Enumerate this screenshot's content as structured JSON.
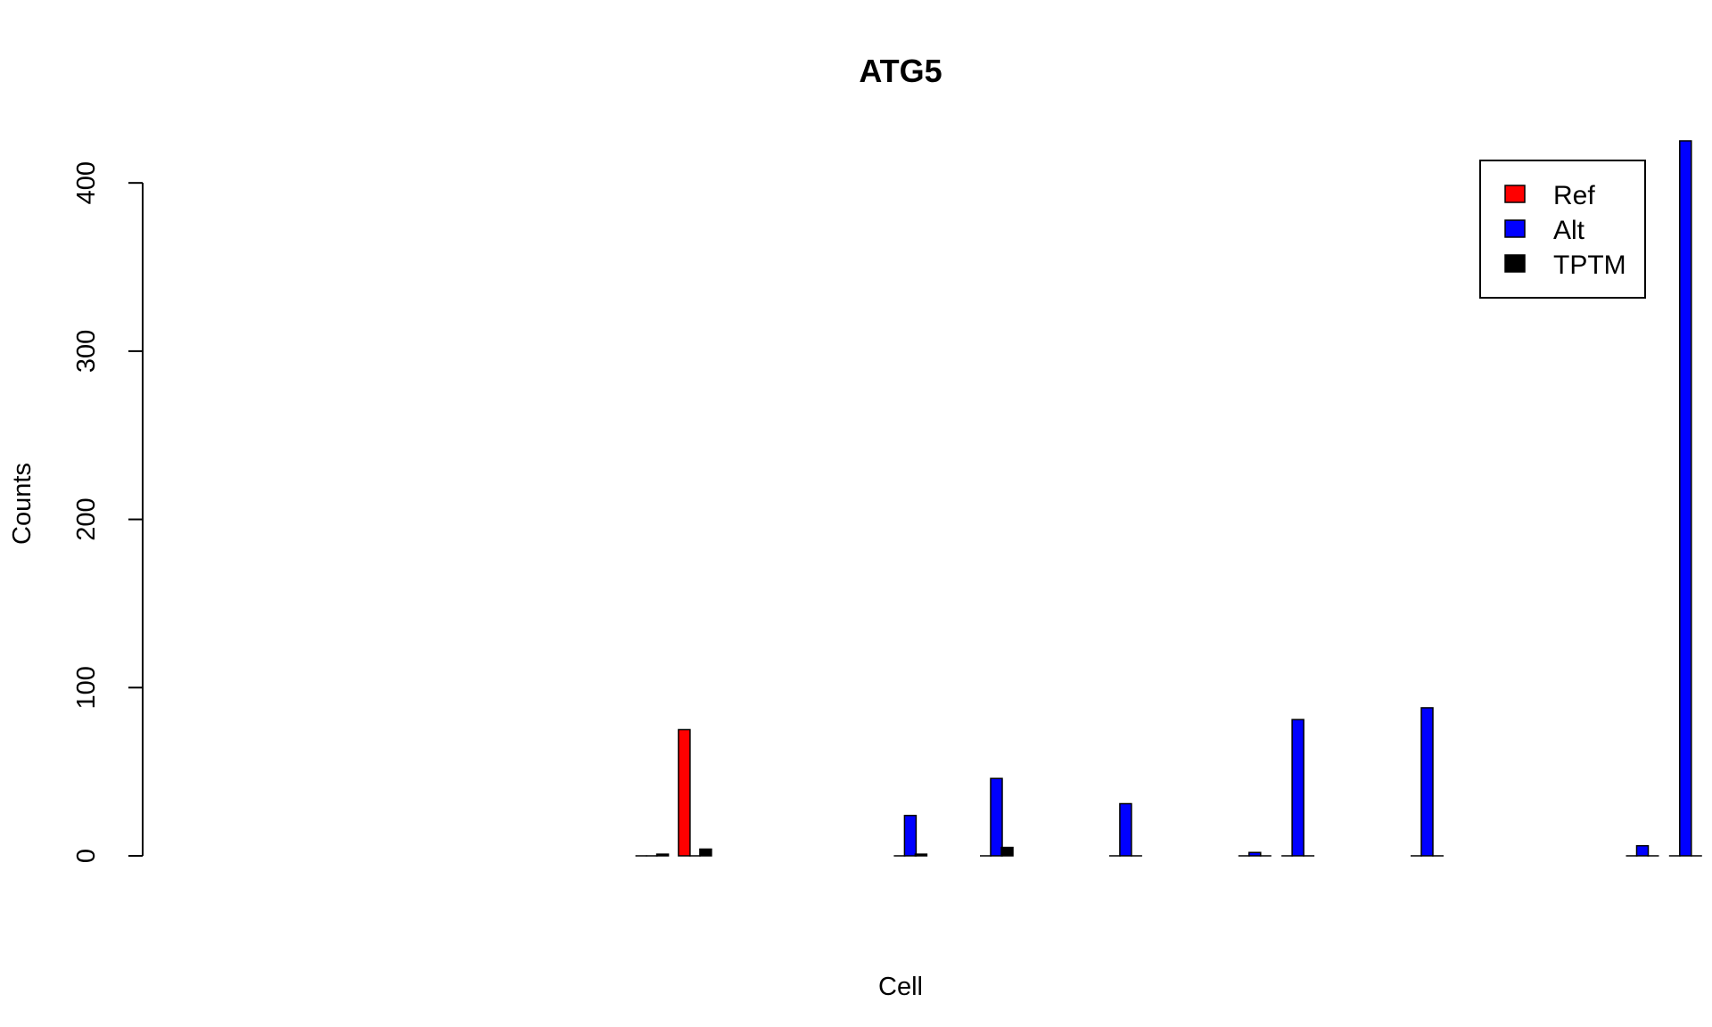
{
  "chart_data": {
    "type": "bar",
    "title": "ATG5",
    "xlabel": "Cell",
    "ylabel": "Counts",
    "ylim": [
      0,
      425
    ],
    "yticks": [
      0,
      100,
      200,
      300,
      400
    ],
    "grid": false,
    "legend_position": "top-right",
    "bar_mode": "grouped",
    "categories": [
      "",
      "",
      "",
      "",
      "",
      "",
      "",
      "",
      "",
      "",
      "",
      "",
      "",
      "",
      "",
      "",
      "",
      "",
      "",
      "",
      "",
      "",
      "",
      "",
      "",
      "",
      "",
      "",
      "",
      "",
      "",
      "",
      "",
      "",
      ""
    ],
    "series": [
      {
        "name": "Ref",
        "color": "#ff0000",
        "values": [
          0,
          0,
          0,
          0,
          0,
          0,
          0,
          0,
          75,
          0,
          0,
          0,
          0,
          0,
          0,
          0,
          0,
          0,
          0,
          0,
          0,
          0,
          0,
          0,
          0,
          0,
          0,
          0,
          0,
          0,
          0,
          0,
          0,
          0,
          0
        ]
      },
      {
        "name": "Alt",
        "color": "#0000ff",
        "values": [
          0,
          0,
          0,
          0,
          0,
          0,
          0,
          0,
          0,
          0,
          0,
          0,
          0,
          24,
          0,
          46,
          0,
          0,
          31,
          0,
          0,
          2,
          81,
          0,
          0,
          88,
          0,
          0,
          0,
          0,
          6,
          425,
          4,
          0,
          0
        ]
      },
      {
        "name": "TPTM",
        "color": "#000000",
        "values": [
          0,
          0,
          0,
          0,
          0,
          0,
          0,
          1,
          4,
          0,
          0,
          0,
          0,
          1,
          0,
          5,
          0,
          0,
          0,
          0,
          0,
          0,
          0,
          0,
          0,
          0,
          0,
          0,
          0,
          0,
          0,
          0,
          0,
          0,
          1
        ]
      }
    ]
  }
}
